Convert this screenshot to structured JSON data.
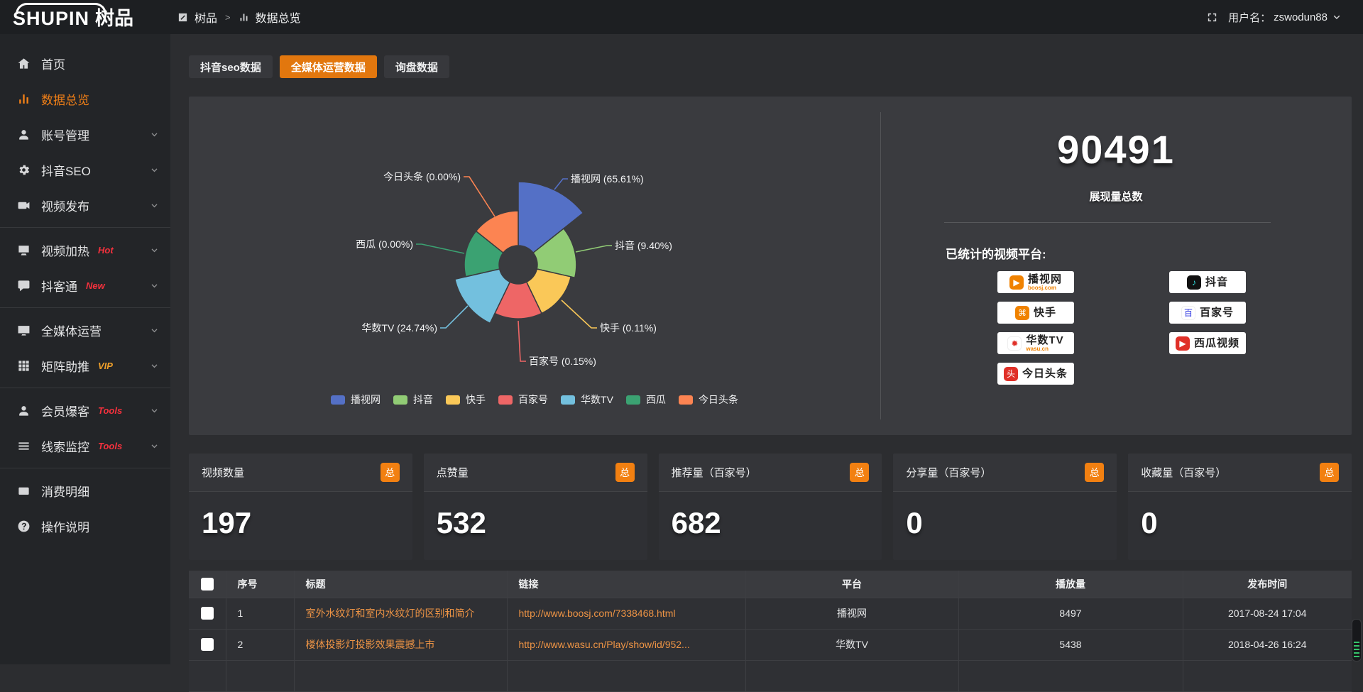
{
  "topbar": {
    "logo_en": "SHUPIN",
    "logo_cn": "树品",
    "breadcrumb_root": "树品",
    "breadcrumb_sep": ">",
    "breadcrumb_current": "数据总览",
    "fullscreen_icon": "fullscreen-icon",
    "username_label": "用户名：",
    "username": "zswodun88"
  },
  "sidebar": {
    "items": [
      {
        "label": "首页",
        "icon": "home-icon",
        "active": false,
        "chevron": false,
        "badge": "",
        "badge_color": "",
        "divider_after": false
      },
      {
        "label": "数据总览",
        "icon": "bar-chart-icon",
        "active": true,
        "chevron": false,
        "badge": "",
        "badge_color": "",
        "divider_after": false
      },
      {
        "label": "账号管理",
        "icon": "user-icon",
        "active": false,
        "chevron": true,
        "badge": "",
        "badge_color": "",
        "divider_after": false
      },
      {
        "label": "抖音SEO",
        "icon": "gear-icon",
        "active": false,
        "chevron": true,
        "badge": "",
        "badge_color": "",
        "divider_after": false
      },
      {
        "label": "视频发布",
        "icon": "video-camera-icon",
        "active": false,
        "chevron": true,
        "badge": "",
        "badge_color": "",
        "divider_after": true
      },
      {
        "label": "视频加热",
        "icon": "tv-heat-icon",
        "active": false,
        "chevron": true,
        "badge": "Hot",
        "badge_color": "#f5313d",
        "divider_after": false
      },
      {
        "label": "抖客通",
        "icon": "chat-bubble-icon",
        "active": false,
        "chevron": true,
        "badge": "New",
        "badge_color": "#f5313d",
        "divider_after": true
      },
      {
        "label": "全媒体运营",
        "icon": "monitor-icon",
        "active": false,
        "chevron": true,
        "badge": "",
        "badge_color": "",
        "divider_after": false
      },
      {
        "label": "矩阵助推",
        "icon": "grid-icon",
        "active": false,
        "chevron": true,
        "badge": "VIP",
        "badge_color": "#f0a02a",
        "divider_after": true
      },
      {
        "label": "会员爆客",
        "icon": "member-icon",
        "active": false,
        "chevron": true,
        "badge": "Tools",
        "badge_color": "#f5313d",
        "divider_after": false
      },
      {
        "label": "线索监控",
        "icon": "sliders-icon",
        "active": false,
        "chevron": true,
        "badge": "Tools",
        "badge_color": "#f5313d",
        "divider_after": true
      },
      {
        "label": "消费明细",
        "icon": "wallet-icon",
        "active": false,
        "chevron": false,
        "badge": "",
        "badge_color": "",
        "divider_after": false
      },
      {
        "label": "操作说明",
        "icon": "help-circle-icon",
        "active": false,
        "chevron": false,
        "badge": "",
        "badge_color": "",
        "divider_after": false
      }
    ]
  },
  "tabs": [
    {
      "label": "抖音seo数据",
      "active": false
    },
    {
      "label": "全媒体运营数据",
      "active": true
    },
    {
      "label": "询盘数据",
      "active": false
    }
  ],
  "chart_data": {
    "type": "pie",
    "subtype": "nightingale-rose-donut",
    "categories": [
      "播视网",
      "抖音",
      "快手",
      "百家号",
      "华数TV",
      "西瓜",
      "今日头条"
    ],
    "values": [
      65.61,
      9.4,
      0.11,
      0.15,
      24.74,
      0,
      0
    ],
    "unit": "%",
    "colors": [
      "#5470c6",
      "#91cc75",
      "#fac858",
      "#ee6666",
      "#73c0de",
      "#3ba272",
      "#fc8452"
    ],
    "legend_position": "bottom-center",
    "label_format": "{name} ({value}%)"
  },
  "summary": {
    "total_value": "90491",
    "total_label": "展现量总数",
    "platforms_title": "已统计的视频平台:",
    "platforms_left": [
      {
        "label": "播视网",
        "sub": "boosj.com",
        "icon": "boosj-icon",
        "icon_bg": "#f08200",
        "glyph": "▶",
        "glyph_color": "#ffffff"
      },
      {
        "label": "快手",
        "sub": "",
        "icon": "kuaishou-icon",
        "icon_bg": "#f08200",
        "glyph": "⌘",
        "glyph_color": "#ffffff"
      },
      {
        "label": "华数TV",
        "sub": "wasu.cn",
        "icon": "wasu-icon",
        "icon_bg": "#ffffff",
        "glyph": "✹",
        "glyph_color": "#e03028"
      },
      {
        "label": "今日头条",
        "sub": "",
        "icon": "toutiao-icon",
        "icon_bg": "#e03028",
        "glyph": "头",
        "glyph_color": "#ffffff"
      }
    ],
    "platforms_right": [
      {
        "label": "抖音",
        "sub": "",
        "icon": "douyin-icon",
        "icon_bg": "#111111",
        "glyph": "♪",
        "glyph_color": "#2fe4e4"
      },
      {
        "label": "百家号",
        "sub": "",
        "icon": "baijiahao-icon",
        "icon_bg": "#ffffff",
        "glyph": "百",
        "glyph_color": "#2932e1"
      },
      {
        "label": "西瓜视频",
        "sub": "",
        "icon": "xigua-icon",
        "icon_bg": "#e03028",
        "glyph": "▶",
        "glyph_color": "#ffffff"
      }
    ]
  },
  "stat_cards": [
    {
      "title": "视频数量",
      "badge": "总",
      "value": "197"
    },
    {
      "title": "点赞量",
      "badge": "总",
      "value": "532"
    },
    {
      "title": "推荐量（百家号）",
      "badge": "总",
      "value": "682"
    },
    {
      "title": "分享量（百家号）",
      "badge": "总",
      "value": "0"
    },
    {
      "title": "收藏量（百家号）",
      "badge": "总",
      "value": "0"
    }
  ],
  "table": {
    "headers": [
      "序号",
      "标题",
      "链接",
      "平台",
      "播放量",
      "发布时间"
    ],
    "rows": [
      {
        "no": "1",
        "title": "室外水纹灯和室内水纹灯的区别和简介",
        "link": "http://www.boosj.com/7338468.html",
        "platform": "播视网",
        "plays": "8497",
        "time": "2017-08-24 17:04"
      },
      {
        "no": "2",
        "title": "楼体投影灯投影效果震撼上市",
        "link": "http://www.wasu.cn/Play/show/id/952...",
        "platform": "华数TV",
        "plays": "5438",
        "time": "2018-04-26 16:24"
      }
    ]
  }
}
